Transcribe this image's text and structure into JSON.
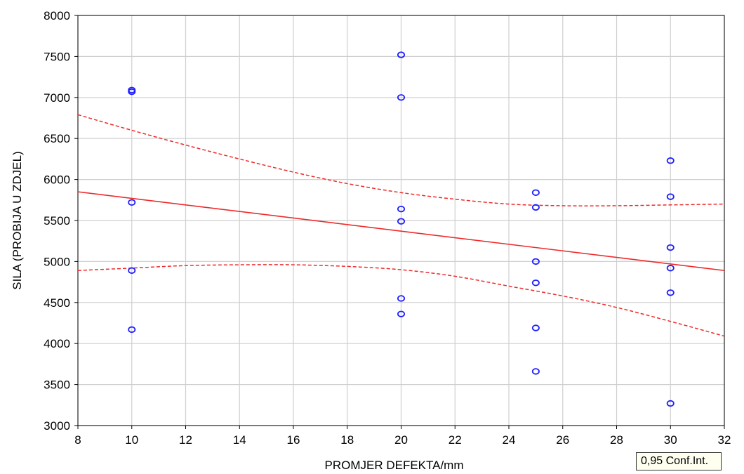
{
  "chart_data": {
    "type": "scatter",
    "xlabel": "PROMJER DEFEKTA/mm",
    "ylabel": "SILA (PROBIJA U ZDJEL)",
    "xlim": [
      8,
      32
    ],
    "ylim": [
      3000,
      8000
    ],
    "xticks": [
      8,
      10,
      12,
      14,
      16,
      18,
      20,
      22,
      24,
      26,
      28,
      30,
      32
    ],
    "yticks": [
      3000,
      3500,
      4000,
      4500,
      5000,
      5500,
      6000,
      6500,
      7000,
      7500,
      8000
    ],
    "grid": true,
    "points": [
      {
        "x": 10,
        "y": 7090
      },
      {
        "x": 10,
        "y": 7070
      },
      {
        "x": 10,
        "y": 5720
      },
      {
        "x": 10,
        "y": 4890
      },
      {
        "x": 10,
        "y": 4170
      },
      {
        "x": 20,
        "y": 7520
      },
      {
        "x": 20,
        "y": 7000
      },
      {
        "x": 20,
        "y": 5640
      },
      {
        "x": 20,
        "y": 5490
      },
      {
        "x": 20,
        "y": 4550
      },
      {
        "x": 20,
        "y": 4360
      },
      {
        "x": 25,
        "y": 5840
      },
      {
        "x": 25,
        "y": 5660
      },
      {
        "x": 25,
        "y": 5000
      },
      {
        "x": 25,
        "y": 4740
      },
      {
        "x": 25,
        "y": 4190
      },
      {
        "x": 25,
        "y": 3660
      },
      {
        "x": 30,
        "y": 6230
      },
      {
        "x": 30,
        "y": 5790
      },
      {
        "x": 30,
        "y": 5170
      },
      {
        "x": 30,
        "y": 4920
      },
      {
        "x": 30,
        "y": 4620
      },
      {
        "x": 30,
        "y": 3270
      }
    ],
    "fit_line": {
      "x": [
        8,
        32
      ],
      "y": [
        5850,
        4890
      ]
    },
    "conf_upper": {
      "x": [
        8,
        10,
        12,
        14,
        16,
        18,
        20,
        22,
        24,
        26,
        28,
        30,
        32
      ],
      "y": [
        6790,
        6600,
        6420,
        6250,
        6090,
        5950,
        5840,
        5760,
        5700,
        5680,
        5680,
        5690,
        5700
      ]
    },
    "conf_lower": {
      "x": [
        8,
        10,
        12,
        14,
        16,
        18,
        20,
        22,
        24,
        26,
        28,
        30,
        32
      ],
      "y": [
        4890,
        4920,
        4950,
        4960,
        4960,
        4940,
        4900,
        4820,
        4700,
        4580,
        4440,
        4270,
        4090
      ]
    },
    "legend": "0,95 Conf.Int.",
    "colors": {
      "points": "#1f1fff",
      "fit": "#ee2a2a",
      "grid": "#cfcfcf",
      "legend_bg": "#fffff0"
    }
  }
}
